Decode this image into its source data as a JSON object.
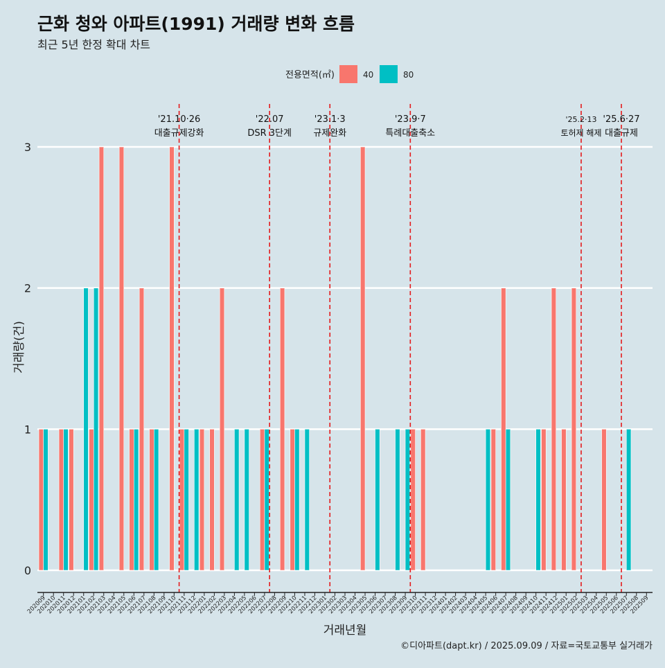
{
  "colors": {
    "background": "#d6e4ea",
    "s40": "#f8766d",
    "s80": "#00bfc4",
    "event_line": "#e41a1c",
    "grid": "#ffffff"
  },
  "chart_data": {
    "type": "bar",
    "title": "근화 청와 아파트(1991) 거래량 변화 흐름",
    "subtitle": "최근 5년 한정 확대 차트",
    "xlabel": "거래년월",
    "ylabel": "거래량(건)",
    "ylim": [
      0,
      3
    ],
    "yticks": [
      0,
      1,
      2,
      3
    ],
    "grid": true,
    "legend_position": "top",
    "legend_title": "전용면적(㎡)",
    "caption": "©디아파트(dapt.kr) / 2025.09.09 / 자료=국토교통부 실거래가",
    "categories": [
      "202009",
      "202010",
      "202011",
      "202012",
      "202101",
      "202102",
      "202103",
      "202104",
      "202105",
      "202106",
      "202107",
      "202108",
      "202109",
      "202110",
      "202111",
      "202112",
      "202201",
      "202202",
      "202203",
      "202204",
      "202205",
      "202206",
      "202207",
      "202208",
      "202209",
      "202210",
      "202211",
      "202212",
      "202301",
      "202302",
      "202303",
      "202304",
      "202305",
      "202306",
      "202307",
      "202308",
      "202309",
      "202310",
      "202311",
      "202312",
      "202401",
      "202402",
      "202403",
      "202404",
      "202405",
      "202406",
      "202407",
      "202408",
      "202409",
      "202410",
      "202411",
      "202412",
      "202501",
      "202502",
      "202503",
      "202504",
      "202505",
      "202506",
      "202507",
      "202508",
      "202509"
    ],
    "series": [
      {
        "name": "40",
        "values": [
          1,
          0,
          1,
          1,
          0,
          1,
          3,
          0,
          3,
          1,
          2,
          1,
          0,
          3,
          1,
          0,
          1,
          1,
          2,
          0,
          0,
          0,
          1,
          0,
          2,
          1,
          0,
          0,
          0,
          0,
          0,
          0,
          3,
          0,
          0,
          0,
          0,
          1,
          1,
          0,
          0,
          0,
          0,
          0,
          0,
          1,
          2,
          0,
          0,
          0,
          1,
          2,
          1,
          2,
          0,
          0,
          1,
          0,
          0,
          0,
          0
        ]
      },
      {
        "name": "80",
        "values": [
          1,
          0,
          1,
          0,
          2,
          2,
          0,
          0,
          0,
          1,
          0,
          1,
          0,
          0,
          1,
          1,
          0,
          0,
          0,
          1,
          1,
          0,
          1,
          0,
          0,
          1,
          1,
          0,
          0,
          0,
          0,
          0,
          0,
          1,
          0,
          1,
          1,
          0,
          0,
          0,
          0,
          0,
          0,
          0,
          1,
          0,
          1,
          0,
          0,
          1,
          0,
          0,
          0,
          0,
          0,
          0,
          0,
          0,
          1,
          0,
          0
        ]
      }
    ],
    "events": [
      {
        "date_label": "'21.10·26",
        "label": "대출규제강화",
        "after": "202110"
      },
      {
        "date_label": "'22.07",
        "label": "DSR 3단계",
        "after": "202207"
      },
      {
        "date_label": "'23.1·3",
        "label": "규제완화",
        "after": "202301"
      },
      {
        "date_label": "'23.9·7",
        "label": "특례대출축소",
        "after": "202309"
      },
      {
        "date_label": "'25.2·13",
        "label": "토허제 해제",
        "after": "202502"
      },
      {
        "date_label": "'25.6·27",
        "label": "대출규제",
        "after": "202506"
      }
    ]
  }
}
